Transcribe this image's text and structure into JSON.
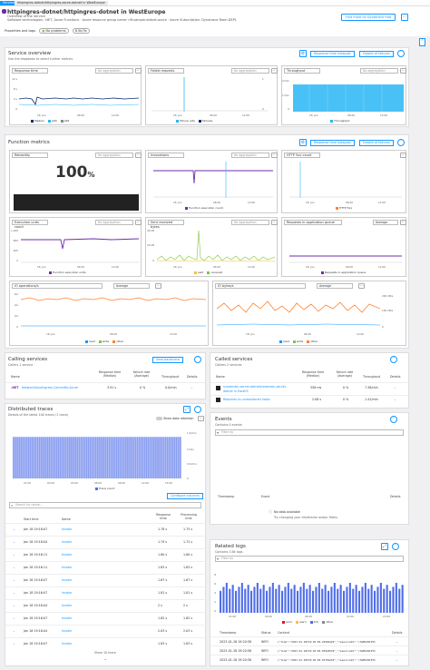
{
  "breadcrumb": {
    "item1": "Services",
    "item2": "httpingres-dotnet/httpingres-azure-dotnet in WestEurope"
  },
  "header": {
    "title": "httpingres-dotnet/httpingres-dotnet in WestEurope",
    "overview": "Overview of the Service",
    "meta": "Software technologies: .NET, Azure Functions · Azure resource group name: nff-sample-dotnet-azure · Azure Subscription: Dynatrace-Team-DEPL",
    "find_more": "Find more on Dynatrace Hub"
  },
  "props": {
    "label": "Properties and tags",
    "status": "No problems",
    "version": "6.5k/3x"
  },
  "service_overview": {
    "title": "Service overview",
    "subtitle": "Use the dropdown to select further metrics",
    "btn_resp": "Response time hotspots",
    "btn_fail": "Details of failures",
    "tiles": [
      {
        "label": "Response time",
        "agg": "No aggregation",
        "yticks": [
          "12 s",
          "8 s",
          "4 s",
          "0"
        ],
        "xticks": [
          "18. Jan",
          "06:00",
          "12:00"
        ],
        "legend": [
          "Median",
          "p90",
          "p99"
        ]
      },
      {
        "label": "Failed requests",
        "agg": "No aggregation",
        "yticks": [
          "1",
          "0"
        ],
        "xticks": [
          "18. Jan",
          "06:00",
          "12:00"
        ],
        "legend": [
          "Failure rate",
          "Failures"
        ]
      },
      {
        "label": "Throughput",
        "agg": "No aggregation",
        "yticks": [
          "2/min",
          "1/min",
          "0"
        ],
        "xticks": [
          "18. Jan",
          "06:00",
          "12:00"
        ],
        "legend": [
          "Throughput"
        ]
      }
    ]
  },
  "function_metrics": {
    "title": "Function metrics",
    "btn_resp": "Response time hotspots",
    "btn_fail": "Details of failures",
    "reliability": {
      "label": "Reliability",
      "agg": "No aggregation",
      "value": "100",
      "unit": "%"
    },
    "invocations": {
      "label": "Invocations",
      "agg": "No aggregation",
      "legend": "Function execution count",
      "xticks": [
        "18. Jan",
        "06:00",
        "12:00"
      ]
    },
    "http5xx": {
      "label": "HTTP 5xx count",
      "legend": "HTTP 5xx",
      "xticks": [
        "18. Jan",
        "06:00",
        "12:00"
      ]
    },
    "exec_units": {
      "label": "Execution units count",
      "agg": "No aggregation",
      "legend": "Function execution units",
      "yticks": [
        "1,200",
        "800",
        "400",
        "0"
      ],
      "xticks": [
        "18. Jan",
        "06:00",
        "12:00"
      ]
    },
    "sent_recv": {
      "label": "Sent received bytes",
      "agg": "No aggregation",
      "legend": [
        "sent",
        "received"
      ],
      "yticks": [
        "40 kB",
        "20 kB",
        "0"
      ],
      "xticks": [
        "18. Jan",
        "06:00",
        "12:00"
      ]
    },
    "queue": {
      "label": "Requests in application queue",
      "agg": "Average",
      "legend": "Requests in application queue",
      "xticks": [
        "18. Jan",
        "06:00",
        "12:00"
      ]
    },
    "io_ops": {
      "label": "IO operations/s",
      "agg": "Average",
      "legend": [
        "read",
        "write",
        "other"
      ],
      "yticks": [
        "6/s",
        "4/s",
        "2/s",
        "0"
      ],
      "xticks": [
        "18. Jan",
        "06:00",
        "12:00"
      ]
    },
    "io_bytes": {
      "label": "IO bytes/s",
      "agg": "Average",
      "legend": [
        "read",
        "write",
        "other"
      ],
      "yticks": [
        "200 kB/s",
        "100 kB/s",
        "0"
      ],
      "xticks": [
        "18. Jan",
        "06:00",
        "12:00"
      ]
    }
  },
  "calling": {
    "title": "Calling services",
    "subtitle": "Callers 1 service",
    "btn": "View backtrace",
    "headers": [
      "Name",
      "Response time (Median)",
      "Failure rate (Average)",
      "Throughput",
      "Details"
    ],
    "rows": [
      {
        "name": "NetworkZoneIngress Committo-Azure",
        "rt": "3.91 s",
        "fr": "0 %",
        "tp": "0.0/min"
      }
    ]
  },
  "called": {
    "title": "Called services",
    "subtitle": "Callees 2 services",
    "headers": [
      "Name",
      "Response time (Median)",
      "Failure rate (Average)",
      "Throughput",
      "Details"
    ],
    "rows": [
      {
        "name": "ncoremain-server-dotnet/coremain-server-dotnet in EastUS",
        "rt": "358 ms",
        "fr": "0 %",
        "tp": "7.38/min"
      },
      {
        "name": "Requests to unmonitored hosts",
        "rt": "2.08 s",
        "fr": "0 %",
        "tp": "1.41/min"
      }
    ]
  },
  "traces": {
    "title": "Distributed traces",
    "subtitle": "Details of the latest 100 traces (1 trace)",
    "toggle": "Show data retention",
    "xticks": [
      "21:00",
      "00:00",
      "03:00",
      "06:00",
      "09:00",
      "12:00",
      "15:00"
    ],
    "yticks": [
      "1.5/min",
      "1/min",
      "0.5/min",
      "0"
    ],
    "legend": "Trace count",
    "configure": "Configure columns",
    "search": "Search by name...",
    "headers": [
      "Start time",
      "Name",
      "Response time",
      "Processing time"
    ],
    "rows": [
      {
        "time": "Jan 18 19:18:07",
        "name": "Invoke",
        "rt": "1.78 s",
        "pt": "1.75 s"
      },
      {
        "time": "Jan 18 19:18:04",
        "name": "Invoke",
        "rt": "1.79 s",
        "pt": "1.72 s"
      },
      {
        "time": "Jan 18 19:16:11",
        "name": "Invoke",
        "rt": "1.80 s",
        "pt": "1.80 s"
      },
      {
        "time": "Jan 18 19:16:11",
        "name": "Invoke",
        "rt": "1.83 s",
        "pt": "1.83 s"
      },
      {
        "time": "Jan 18 19:16:07",
        "name": "Invoke",
        "rt": "1.67 s",
        "pt": "1.67 s"
      },
      {
        "time": "Jan 18 19:16:07",
        "name": "Invoke",
        "rt": "1.81 s",
        "pt": "1.81 s"
      },
      {
        "time": "Jan 18 19:16:04",
        "name": "Invoke",
        "rt": "2 s",
        "pt": "2 s"
      },
      {
        "time": "Jan 18 19:16:07",
        "name": "Invoke",
        "rt": "1.82 s",
        "pt": "1.82 s"
      },
      {
        "time": "Jan 18 19:16:04",
        "name": "Invoke",
        "rt": "2.03 s",
        "pt": "2.03 s"
      },
      {
        "time": "Jan 18 19:16:07",
        "name": "Invoke",
        "rt": "1.83 s",
        "pt": "1.83 s"
      }
    ],
    "show_more": "Show 10 more"
  },
  "events": {
    "title": "Events",
    "subtitle": "Contains 0 events",
    "filter": "Filter by",
    "headers": [
      "Timestamp",
      "Event",
      "Details"
    ],
    "empty1": "No data available",
    "empty2": "Try changing your timeframe and/or filters"
  },
  "logs": {
    "title": "Related logs",
    "subtitle": "Contains 3.8k logs",
    "filter": "Filter by",
    "yticks": [
      "8",
      "6",
      "4",
      "2",
      "0"
    ],
    "xticks": [
      "21:00",
      "00:00",
      "06:00",
      "12:00",
      "15:00"
    ],
    "legend": [
      "error",
      "warn",
      "info",
      "other"
    ],
    "headers": [
      "Timestamp",
      "Status",
      "Content",
      "Details"
    ],
    "rows": [
      {
        "time": "2023-01-18 19:20:58",
        "status": "INFO",
        "content": "{\"time\":\"2023-01-18T19:20:58.2456642Z\",\"resourceId\":\"/SUBSCRIPTI"
      },
      {
        "time": "2023-01-18 19:20:58",
        "status": "INFO",
        "content": "{\"time\":\"2023-01-18T19:20:58.0394563Z\",\"resourceId\":\"/SUBSCRIPTI"
      },
      {
        "time": "2023-01-18 19:20:58",
        "status": "INFO",
        "content": "{\"time\":\"2023-01-18T19:20:58.0376225Z\",\"resourceId\":\"/SUBSCRIPTI"
      }
    ]
  },
  "colors": {
    "accent": "#1496ff",
    "purple": "#6f2da8",
    "cyan": "#2ab6f4",
    "orange": "#fd8232",
    "navy": "#0b2c6e",
    "green": "#7dc540"
  }
}
